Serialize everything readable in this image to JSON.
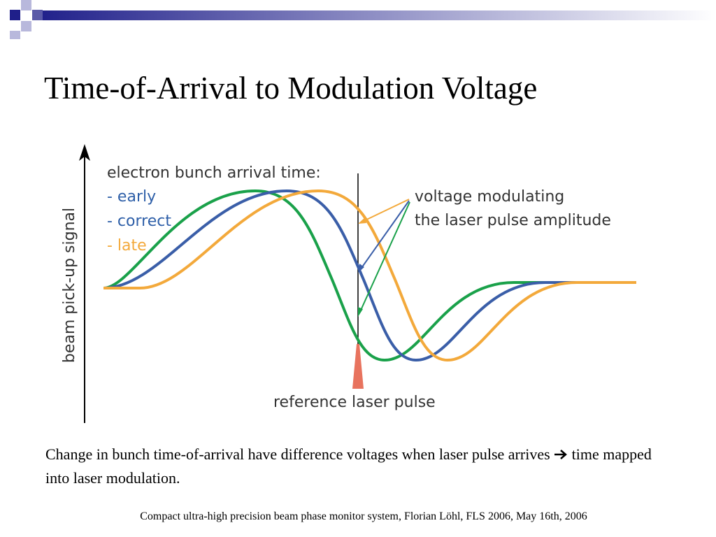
{
  "title": "Time-of-Arrival to Modulation Voltage",
  "diagram": {
    "y_axis_label": "beam pick-up signal",
    "legend": {
      "heading": "electron bunch arrival time:",
      "items": [
        "- early",
        "- correct",
        "- late"
      ]
    },
    "annotation": [
      "voltage modulating",
      "the laser pulse amplitude"
    ],
    "reference_label": "reference laser pulse"
  },
  "body": {
    "before_arrow": "Change in bunch time-of-arrival have difference voltages when laser pulse arrives",
    "after_arrow": "time mapped into laser modulation."
  },
  "footer": "Compact ultra-high precision beam phase monitor system, Florian Löhl, FLS 2006, May 16th, 2006"
}
